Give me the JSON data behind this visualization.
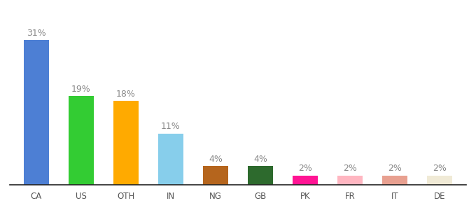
{
  "categories": [
    "CA",
    "US",
    "OTH",
    "IN",
    "NG",
    "GB",
    "PK",
    "FR",
    "IT",
    "DE"
  ],
  "values": [
    31,
    19,
    18,
    11,
    4,
    4,
    2,
    2,
    2,
    2
  ],
  "bar_colors": [
    "#4d7fd4",
    "#33cc33",
    "#ffaa00",
    "#87ceeb",
    "#b5651d",
    "#2d6a2d",
    "#ff1493",
    "#ffb6c1",
    "#e8a090",
    "#f0ead6"
  ],
  "title": "",
  "ylim": [
    0,
    36
  ],
  "bar_width": 0.55,
  "label_fontsize": 9,
  "tick_fontsize": 8.5,
  "label_color": "#888888",
  "tick_color": "#555555",
  "background_color": "#ffffff"
}
